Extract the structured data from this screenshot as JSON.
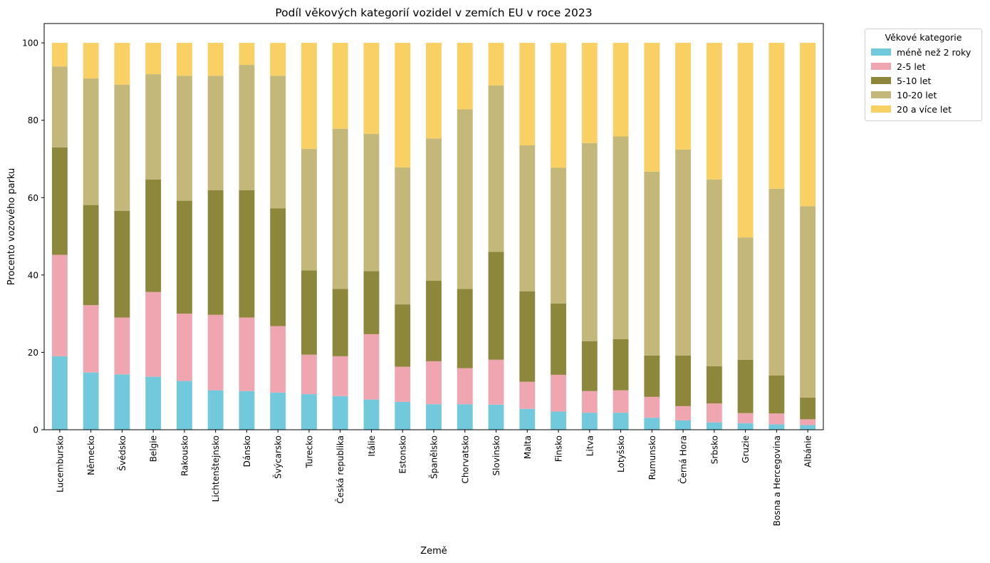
{
  "chart_data": {
    "type": "bar",
    "stacked": true,
    "title": "Podíl věkových kategorií vozidel v zemích EU v roce 2023",
    "xlabel": "Země",
    "ylabel": "Procento vozového parku",
    "ylim": [
      0,
      105
    ],
    "yticks": [
      0,
      20,
      40,
      60,
      80,
      100
    ],
    "grid": false,
    "legend_title": "Věkové kategorie",
    "legend_position": "outside-top-right",
    "categories": [
      "Lucembursko",
      "Německo",
      "Švédsko",
      "Belgie",
      "Rakousko",
      "Lichtenštejnsko",
      "Dánsko",
      "Švýcarsko",
      "Turecko",
      "Česká republika",
      "Itálie",
      "Estonsko",
      "Španělsko",
      "Chorvatsko",
      "Slovinsko",
      "Malta",
      "Finsko",
      "Litva",
      "Lotyšsko",
      "Rumunsko",
      "Černá Hora",
      "Srbsko",
      "Gruzie",
      "Bosna a Hercegovina",
      "Albánie"
    ],
    "series": [
      {
        "name": "méně než 2 roky",
        "color": "#72c9dc",
        "values": [
          19.0,
          14.8,
          14.3,
          13.7,
          12.6,
          10.2,
          10.0,
          9.6,
          9.2,
          8.7,
          7.8,
          7.2,
          6.6,
          6.6,
          6.5,
          5.4,
          4.7,
          4.4,
          4.4,
          3.1,
          2.4,
          1.9,
          1.7,
          1.4,
          1.2
        ]
      },
      {
        "name": "2-5 let",
        "color": "#f0a6b0",
        "values": [
          26.2,
          17.4,
          14.7,
          21.9,
          17.4,
          19.5,
          19.0,
          17.2,
          10.2,
          10.3,
          16.9,
          9.1,
          11.1,
          9.3,
          11.6,
          7.0,
          9.5,
          5.6,
          5.8,
          5.4,
          3.7,
          4.9,
          2.6,
          2.8,
          1.5
        ]
      },
      {
        "name": "5-10 let",
        "color": "#8c873a",
        "values": [
          27.8,
          25.9,
          27.6,
          29.1,
          29.2,
          32.2,
          32.9,
          30.4,
          21.8,
          17.4,
          16.3,
          16.1,
          20.8,
          20.5,
          27.9,
          23.4,
          18.4,
          12.9,
          13.2,
          10.7,
          13.1,
          9.6,
          13.8,
          9.8,
          5.6
        ]
      },
      {
        "name": "10-20 let",
        "color": "#c4b77a",
        "values": [
          20.9,
          32.7,
          32.6,
          27.2,
          32.3,
          29.6,
          32.4,
          34.3,
          31.4,
          41.4,
          35.5,
          35.4,
          36.8,
          46.4,
          43.0,
          37.7,
          35.1,
          51.2,
          52.4,
          47.5,
          53.2,
          48.3,
          31.6,
          48.3,
          49.5
        ]
      },
      {
        "name": "20 a více let",
        "color": "#f9d064",
        "values": [
          6.1,
          9.2,
          10.8,
          8.1,
          8.5,
          8.5,
          5.7,
          8.5,
          27.4,
          22.2,
          23.5,
          32.2,
          24.7,
          17.2,
          11.0,
          26.5,
          32.3,
          25.9,
          24.2,
          33.3,
          27.6,
          35.3,
          50.3,
          37.7,
          42.2
        ]
      }
    ]
  }
}
